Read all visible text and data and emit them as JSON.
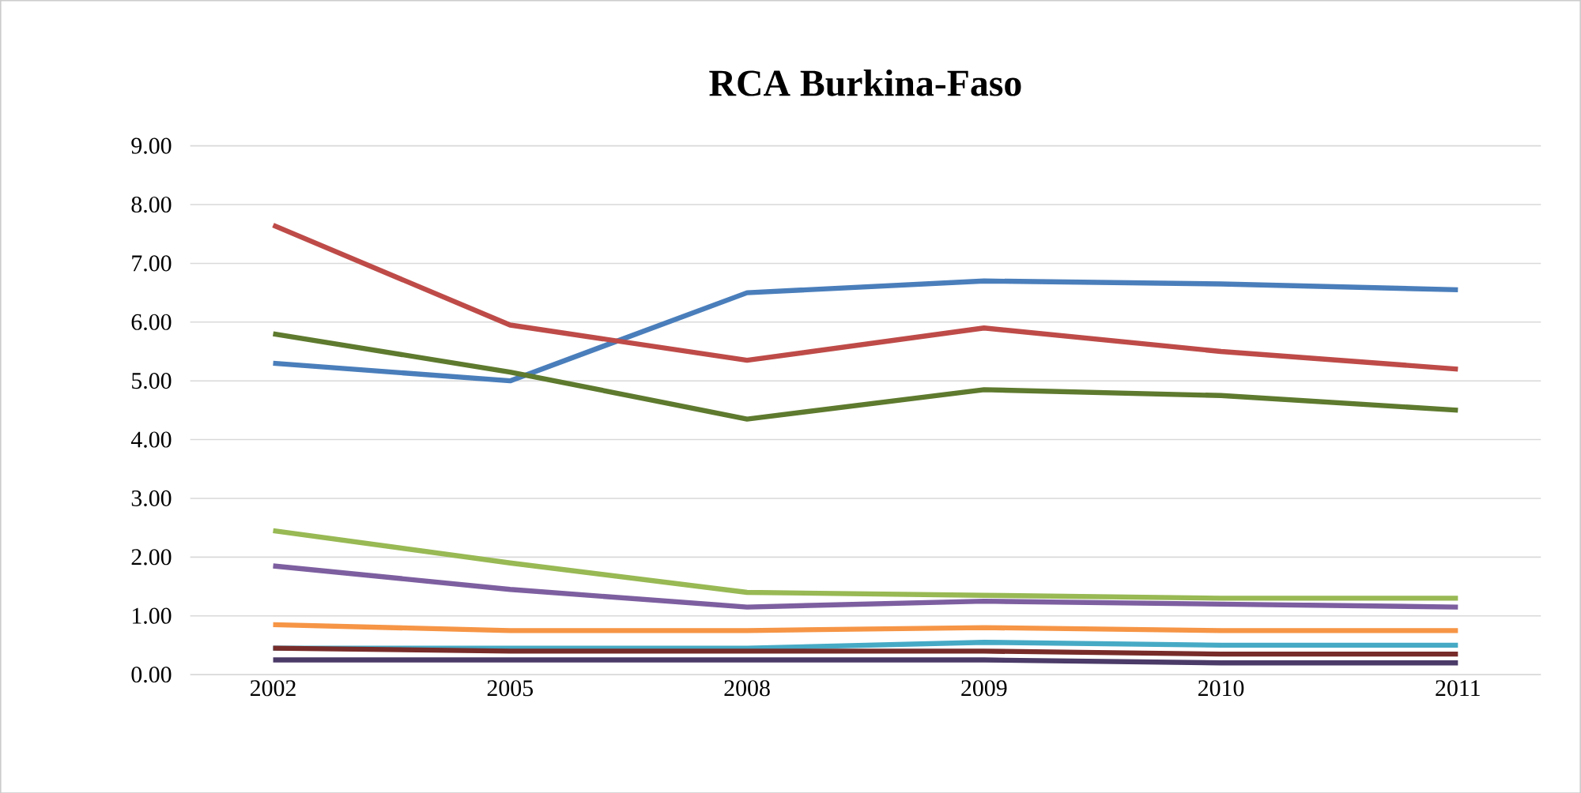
{
  "chart_data": {
    "type": "line",
    "title": "RCA Burkina-Faso",
    "categories": [
      "2002",
      "2005",
      "2008",
      "2009",
      "2010",
      "2011"
    ],
    "ylim": [
      0,
      9
    ],
    "yticks": [
      {
        "value": 0,
        "label": "0.00"
      },
      {
        "value": 1,
        "label": "1.00"
      },
      {
        "value": 2,
        "label": "2.00"
      },
      {
        "value": 3,
        "label": "3.00"
      },
      {
        "value": 4,
        "label": "4.00"
      },
      {
        "value": 5,
        "label": "5.00"
      },
      {
        "value": 6,
        "label": "6.00"
      },
      {
        "value": 7,
        "label": "7.00"
      },
      {
        "value": 8,
        "label": "8.00"
      },
      {
        "value": 9,
        "label": "9.00"
      }
    ],
    "grid": "y",
    "marker": "none",
    "line_style": "solid",
    "series": [
      {
        "color": "#4a7ebb",
        "values": [
          5.3,
          5.0,
          6.5,
          6.7,
          6.65,
          6.55
        ]
      },
      {
        "color": "#be4b48",
        "values": [
          7.65,
          5.95,
          5.35,
          5.9,
          5.5,
          5.2
        ]
      },
      {
        "color": "#5e7a2e",
        "values": [
          5.8,
          5.15,
          4.35,
          4.85,
          4.75,
          4.5
        ]
      },
      {
        "color": "#98b954",
        "values": [
          2.45,
          1.9,
          1.4,
          1.35,
          1.3,
          1.3
        ]
      },
      {
        "color": "#7d5fa0",
        "values": [
          1.85,
          1.45,
          1.15,
          1.25,
          1.2,
          1.15
        ]
      },
      {
        "color": "#f69546",
        "values": [
          0.85,
          0.75,
          0.75,
          0.8,
          0.75,
          0.75
        ]
      },
      {
        "color": "#46aac5",
        "values": [
          0.45,
          0.45,
          0.45,
          0.55,
          0.5,
          0.5
        ]
      },
      {
        "color": "#772c2a",
        "values": [
          0.45,
          0.4,
          0.4,
          0.4,
          0.35,
          0.35
        ]
      },
      {
        "color": "#4b3b68",
        "values": [
          0.25,
          0.25,
          0.25,
          0.25,
          0.2,
          0.2
        ]
      }
    ]
  }
}
